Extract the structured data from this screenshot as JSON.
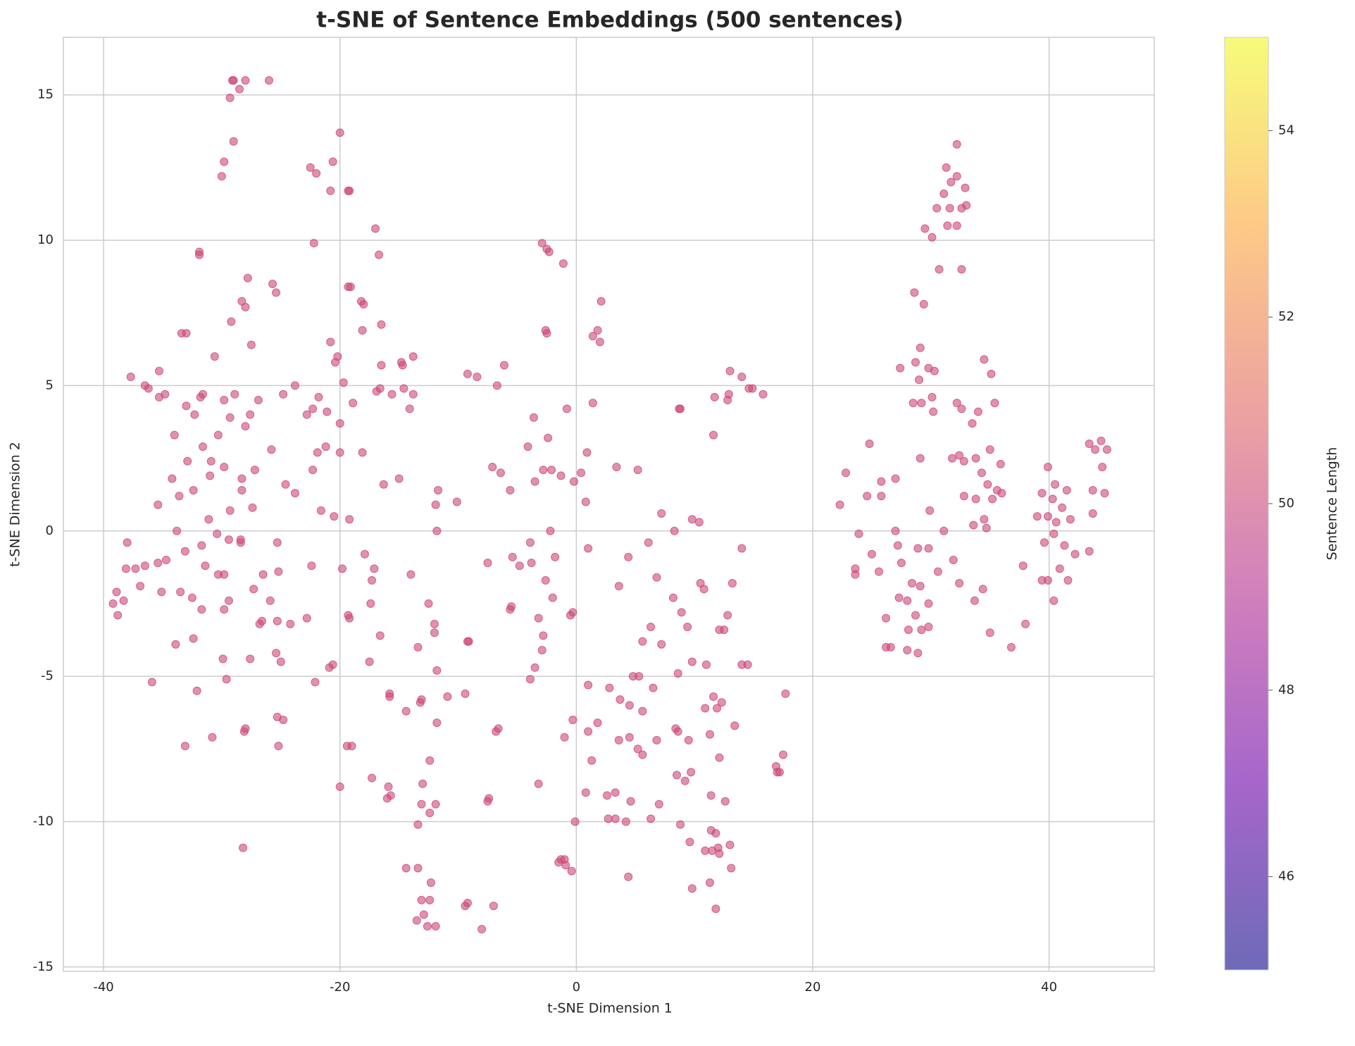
{
  "chart_data": {
    "type": "scatter",
    "title": "t-SNE of Sentence Embeddings (500 sentences)",
    "xlabel": "t-SNE Dimension 1",
    "ylabel": "t-SNE Dimension 2",
    "xlim": [
      -43.4,
      48.9
    ],
    "ylim": [
      -15.15,
      16.98
    ],
    "xticks": [
      -40,
      -20,
      0,
      20,
      40
    ],
    "yticks": [
      -15,
      -10,
      -5,
      0,
      5,
      10,
      15
    ],
    "grid": true,
    "color": "#cc4778",
    "alpha": 0.6,
    "colorbar": {
      "label": "Sentence Length",
      "lim": [
        45,
        55
      ],
      "ticks": [
        46,
        48,
        50,
        52,
        54
      ],
      "colormap": [
        "#0d0887",
        "#6a00a8",
        "#b12a90",
        "#e16462",
        "#fca636",
        "#f0f921"
      ]
    },
    "x": [
      -29,
      -29.1,
      -28.5,
      -28,
      -26,
      -29.3,
      -29,
      -29.8,
      -30,
      -20,
      -22.5,
      -22,
      -20.6,
      -20.8,
      -19.2,
      -19.3,
      -17,
      -22.2,
      -31.9,
      -31.9,
      -16.7,
      -27.8,
      -25.7,
      -25.4,
      -19.3,
      -19.1,
      -28.3,
      -28,
      -18.2,
      -18,
      -29.2,
      -16.5,
      -33.4,
      -33,
      -18.1,
      -27.5,
      -20.8,
      -30.6,
      -20.2,
      -20.4,
      -13.8,
      -14.8,
      -14.7,
      -16.5,
      -37.7,
      -35.3,
      -36.5,
      -36.2,
      -34.8,
      -31.6,
      -31.8,
      -35.3,
      -29.8,
      -28.9,
      -26.9,
      -24.8,
      -23.8,
      -21.8,
      -19.7,
      -16.9,
      -16.6,
      -15.6,
      -14.6,
      -13.8,
      -33,
      -32.3,
      -27.6,
      -28,
      -29.3,
      -22.8,
      -22.3,
      -21.1,
      -20,
      -18.9,
      -14.1,
      -34,
      -30.3,
      -31.6,
      -25.8,
      -21.2,
      -21.9,
      -20,
      -18.1,
      -32.9,
      -30.9,
      -29.8,
      -27.2,
      -22.3,
      -31,
      -34.2,
      -28.3,
      -24.6,
      -16.3,
      -15,
      -33.6,
      -32.4,
      -28.3,
      -23.8,
      -35.4,
      -29.3,
      -27.4,
      -21.6,
      -20.5,
      -19.2,
      -31.1,
      -33.8,
      -30.4,
      -38,
      -31.7,
      -29.4,
      -28.4,
      -28.4,
      -25.3,
      -33.1,
      -26.5,
      -31.4,
      -35.4,
      -36.5,
      -37.3,
      -38.1,
      -34.7,
      -22.4,
      -19.8,
      -17.9,
      -17.1,
      -17.3,
      -14,
      -30.3,
      -29.8,
      -25.2,
      -36.9,
      -35.1,
      -33.5,
      -32.5,
      -27.3,
      -38.9,
      -39.2,
      -38.3,
      -29.4,
      -25.9,
      -17.4,
      -38.8,
      -31.7,
      -29.8,
      -22.8,
      -26.6,
      -26.8,
      -25.3,
      -24.2,
      -19.2,
      -19.3,
      -32.4,
      -33.9,
      -16.6,
      -25.4,
      -25,
      -29.9,
      -27.6,
      -20.9,
      -20.6,
      -17.5,
      -35.9,
      -29.6,
      -22.1,
      -32.1,
      -25.3,
      -24.8,
      -28,
      -28.1,
      -30.8,
      -33.1,
      -25.2,
      -19.4,
      -19,
      -17.3,
      -20,
      -28.2,
      -2.9,
      -2.5,
      -2.3,
      -1.1,
      2.1,
      -2.6,
      -2.5,
      1.8,
      1.4,
      2,
      -6.1,
      -9.2,
      -8.4,
      -6.7,
      13,
      14,
      14.6,
      14.9,
      15.8,
      11.7,
      12.8,
      12.9,
      1.4,
      -0.8,
      8.7,
      8.8,
      -3.6,
      11.6,
      -2.4,
      -4.1,
      0.9,
      -7.1,
      -6.4,
      -2.8,
      -2.1,
      -1.3,
      0.4,
      3.4,
      5.2,
      -0.2,
      -3.5,
      -11.7,
      -5.6,
      -11.9,
      -10.1,
      0.8,
      7.2,
      9.8,
      10.4,
      -11.8,
      -2.2,
      8.3,
      -3.9,
      1,
      6.1,
      14,
      -5.4,
      -3.8,
      -1.8,
      -4.8,
      -7.5,
      4.4,
      -2.6,
      6.8,
      10.5,
      10.8,
      13.2,
      3.6,
      -5.5,
      -5.6,
      -2,
      8.2,
      -0.3,
      -0.5,
      -3.2,
      -2.8,
      8.9,
      -12.5,
      -12,
      -12,
      12.8,
      9.4,
      12.1,
      12.5,
      6.3,
      -9.2,
      -9.1,
      5.6,
      7.2,
      -13.4,
      -2.9,
      -3.5,
      9.8,
      11,
      14,
      14.5,
      -11.8,
      -3.9,
      1,
      2.8,
      4.8,
      5.3,
      8.6,
      -15.8,
      -15.8,
      -10.9,
      -9.4,
      17.7,
      11.6,
      12.3,
      3.7,
      4.5,
      5.6,
      6.5,
      10.9,
      11.9,
      -13.1,
      -13.2,
      -14.4,
      -11.8,
      -0.3,
      1.8,
      8.4,
      8.6,
      13.4,
      -6.8,
      -6.6,
      -1,
      1,
      3.6,
      4.5,
      6.8,
      9.5,
      11.3,
      5.2,
      5.6,
      17.5,
      -12.4,
      1.3,
      12.1,
      16.9,
      17,
      17.2,
      8.5,
      9.7,
      9.2,
      -3.2,
      -13,
      -15.9,
      -16,
      -15.7,
      0.8,
      2.6,
      3.3,
      4.6,
      7,
      11.4,
      12.6,
      -7.5,
      -7.4,
      -13.1,
      -11.9,
      -12.4,
      -13.4,
      -0.1,
      2.7,
      3.3,
      4.2,
      6.3,
      8.8,
      11.4,
      11.8,
      9.6,
      10.9,
      11.5,
      12.1,
      13,
      12,
      -1.3,
      -1,
      -1.5,
      -0.9,
      -0.4,
      -14.4,
      -13.4,
      13.1,
      4.4,
      -12.3,
      11.3,
      9.8,
      -13.1,
      -12.4,
      -9.4,
      -9.2,
      -7,
      11.8,
      -12.9,
      -13.5,
      -12.6,
      -11.9,
      -8,
      32.2,
      31.3,
      32.2,
      31.7,
      32.9,
      31.1,
      30.5,
      31.6,
      32.6,
      33,
      29.5,
      31.4,
      32.2,
      30.1,
      30.7,
      32.6,
      28.6,
      29.4,
      29.1,
      34.5,
      28.7,
      27.4,
      29.8,
      30.3,
      35.1,
      29,
      30.1,
      35.4,
      28.5,
      29.2,
      32.2,
      32.6,
      30.2,
      34,
      33.5,
      24.8,
      35,
      29.1,
      31.8,
      32.4,
      32.8,
      33.8,
      35.9,
      22.8,
      34.3,
      27,
      25.8,
      34.8,
      35.6,
      36,
      24.6,
      25.8,
      32.8,
      33.8,
      35.2,
      22.3,
      29.9,
      34.5,
      33.6,
      34.7,
      23.9,
      27,
      31.1,
      27.2,
      28.9,
      29.8,
      31.9,
      25,
      23.6,
      23.6,
      25.6,
      27.5,
      30.6,
      28.4,
      29.1,
      32.4,
      34.4,
      27.3,
      28,
      29.8,
      33.7,
      26.2,
      28.7,
      28.1,
      29.2,
      29.8,
      35,
      26.2,
      26.6,
      28,
      28.9,
      36.8,
      38,
      37.8,
      43.4,
      44.4,
      44.9,
      43.9,
      39.9,
      44.5,
      40.5,
      41.5,
      43.7,
      44.7,
      39.4,
      40.3,
      41.1,
      39,
      39.9,
      40.6,
      41.8,
      43.7,
      40.4,
      39.6,
      40.9,
      41.3,
      42.2,
      43.4,
      39.4,
      39.9,
      41.6,
      40.4
    ],
    "values": [
      15.5,
      15.5,
      15.2,
      15.5,
      15.5,
      14.9,
      13.4,
      12.7,
      12.2,
      13.7,
      12.5,
      12.3,
      12.7,
      11.7,
      11.7,
      11.7,
      10.4,
      9.9,
      9.5,
      9.6,
      9.5,
      8.7,
      8.5,
      8.2,
      8.4,
      8.4,
      7.9,
      7.7,
      7.9,
      7.8,
      7.2,
      7.1,
      6.8,
      6.8,
      6.9,
      6.4,
      6.5,
      6.0,
      6.0,
      5.8,
      6.0,
      5.8,
      5.7,
      5.7,
      5.3,
      5.5,
      5.0,
      4.9,
      4.7,
      4.7,
      4.6,
      4.6,
      4.5,
      4.7,
      4.5,
      4.7,
      5.0,
      4.6,
      5.1,
      4.8,
      4.9,
      4.7,
      4.9,
      4.7,
      4.3,
      4.0,
      4.0,
      3.6,
      3.9,
      4.0,
      4.2,
      4.1,
      3.7,
      4.4,
      4.2,
      3.3,
      3.3,
      2.9,
      2.8,
      2.9,
      2.7,
      2.7,
      2.7,
      2.4,
      2.4,
      2.2,
      2.1,
      2.1,
      1.9,
      1.8,
      1.8,
      1.6,
      1.6,
      1.8,
      1.2,
      1.4,
      1.4,
      1.3,
      0.9,
      0.7,
      0.8,
      0.7,
      0.5,
      0.4,
      0.4,
      0.0,
      -0.1,
      -0.4,
      -0.5,
      -0.3,
      -0.3,
      -0.4,
      -0.4,
      -0.7,
      -1.5,
      -1.2,
      -1.1,
      -1.2,
      -1.3,
      -1.3,
      -1.0,
      -1.2,
      -1.3,
      -0.8,
      -1.3,
      -1.7,
      -1.5,
      -1.5,
      -1.5,
      -1.4,
      -1.9,
      -2.1,
      -2.1,
      -2.3,
      -2.0,
      -2.1,
      -2.5,
      -2.4,
      -2.4,
      -2.4,
      -2.5,
      -2.9,
      -2.7,
      -2.7,
      -3.0,
      -3.1,
      -3.2,
      -3.1,
      -3.2,
      -3.0,
      -2.9,
      -3.7,
      -3.9,
      -3.6,
      -4.2,
      -4.5,
      -4.4,
      -4.4,
      -4.7,
      -4.6,
      -4.5,
      -5.2,
      -5.1,
      -5.2,
      -5.5,
      -6.4,
      -6.5,
      -6.8,
      -6.9,
      -7.1,
      -7.4,
      -7.4,
      -7.4,
      -7.4,
      -8.5,
      -8.8,
      -10.9,
      9.9,
      9.7,
      9.6,
      9.2,
      7.9,
      6.9,
      6.8,
      6.9,
      6.7,
      6.5,
      5.7,
      5.4,
      5.3,
      5.0,
      5.5,
      5.3,
      4.9,
      4.9,
      4.7,
      4.6,
      4.5,
      4.7,
      4.4,
      4.2,
      4.2,
      4.2,
      3.9,
      3.3,
      3.2,
      2.9,
      2.7,
      2.2,
      2.0,
      2.1,
      2.1,
      1.9,
      2.0,
      2.2,
      2.1,
      1.7,
      1.7,
      1.4,
      1.4,
      0.9,
      1.0,
      1.0,
      0.6,
      0.4,
      0.3,
      0.0,
      0.0,
      0.0,
      -0.4,
      -0.6,
      -0.4,
      -0.6,
      -0.9,
      -1.1,
      -0.9,
      -1.2,
      -1.1,
      -0.9,
      -1.7,
      -1.6,
      -1.8,
      -2.0,
      -1.8,
      -1.9,
      -2.6,
      -2.7,
      -2.3,
      -2.3,
      -2.8,
      -2.9,
      -3.0,
      -3.6,
      -2.8,
      -2.5,
      -3.2,
      -3.5,
      -2.9,
      -3.3,
      -3.4,
      -3.4,
      -3.3,
      -3.8,
      -3.8,
      -3.8,
      -3.9,
      -4.0,
      -4.1,
      -4.7,
      -4.5,
      -4.6,
      -4.6,
      -4.6,
      -4.8,
      -5.1,
      -5.3,
      -5.4,
      -5.0,
      -5.0,
      -4.9,
      -5.6,
      -5.7,
      -5.7,
      -5.6,
      -5.6,
      -5.7,
      -5.9,
      -5.8,
      -6.0,
      -6.2,
      -5.4,
      -6.1,
      -6.1,
      -5.8,
      -5.9,
      -6.2,
      -6.6,
      -6.5,
      -6.6,
      -6.8,
      -6.9,
      -6.7,
      -6.9,
      -6.8,
      -7.1,
      -6.9,
      -7.2,
      -7.1,
      -7.2,
      -7.2,
      -7.0,
      -7.5,
      -7.7,
      -7.7,
      -7.9,
      -7.9,
      -7.8,
      -8.1,
      -8.3,
      -8.3,
      -8.4,
      -8.3,
      -8.6,
      -8.7,
      -8.7,
      -8.8,
      -9.2,
      -9.1,
      -9.0,
      -9.1,
      -9.0,
      -9.3,
      -9.4,
      -9.1,
      -9.3,
      -9.3,
      -9.2,
      -9.4,
      -9.4,
      -9.7,
      -10.1,
      -10.0,
      -9.9,
      -9.9,
      -10.0,
      -9.9,
      -10.1,
      -10.3,
      -10.4,
      -10.7,
      -11.0,
      -11.0,
      -11.1,
      -10.8,
      -10.9,
      -11.3,
      -11.3,
      -11.4,
      -11.5,
      -11.7,
      -11.6,
      -11.6,
      -11.6,
      -11.9,
      -12.1,
      -12.1,
      -12.3,
      -12.7,
      -12.7,
      -12.9,
      -12.8,
      -12.9,
      -13.0,
      -13.2,
      -13.4,
      -13.6,
      -13.6,
      -13.7,
      13.3,
      12.5,
      12.2,
      12.0,
      11.8,
      11.6,
      11.1,
      11.1,
      11.1,
      11.2,
      10.4,
      10.5,
      10.5,
      10.1,
      9.0,
      9.0,
      8.2,
      7.8,
      6.3,
      5.9,
      5.8,
      5.6,
      5.6,
      5.5,
      5.4,
      5.2,
      4.6,
      4.4,
      4.4,
      4.4,
      4.4,
      4.2,
      4.1,
      4.1,
      3.7,
      3.0,
      2.8,
      2.5,
      2.5,
      2.6,
      2.4,
      2.5,
      2.3,
      2.0,
      2.0,
      1.8,
      1.7,
      1.6,
      1.4,
      1.3,
      1.2,
      1.2,
      1.2,
      1.1,
      1.1,
      0.9,
      0.7,
      0.4,
      0.2,
      0.1,
      -0.1,
      0.0,
      0.0,
      -0.5,
      -0.6,
      -0.6,
      -1.0,
      -0.8,
      -1.3,
      -1.5,
      -1.4,
      -1.1,
      -1.4,
      -1.8,
      -1.9,
      -1.8,
      -2.0,
      -2.3,
      -2.4,
      -2.5,
      -2.4,
      -3.0,
      -2.9,
      -3.4,
      -3.4,
      -3.3,
      -3.5,
      -4.0,
      -4.0,
      -4.1,
      -4.2,
      -4.0,
      -3.2,
      -1.2,
      3.0,
      3.1,
      2.8,
      2.8,
      2.2,
      2.2,
      1.6,
      1.4,
      1.4,
      1.3,
      1.3,
      1.1,
      0.8,
      0.5,
      0.5,
      0.3,
      0.4,
      0.6,
      -0.1,
      -0.4,
      -1.3,
      -0.5,
      -0.8,
      -0.7,
      -1.7,
      -1.7,
      -1.7,
      -2.4
    ]
  }
}
